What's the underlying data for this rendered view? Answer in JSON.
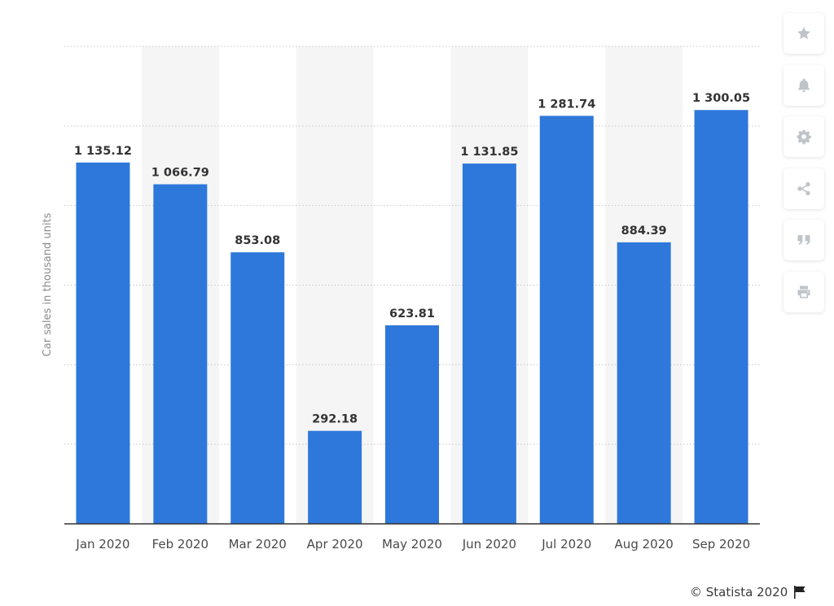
{
  "chart_data": {
    "type": "bar",
    "categories": [
      "Jan 2020",
      "Feb 2020",
      "Mar 2020",
      "Apr 2020",
      "May 2020",
      "Jun 2020",
      "Jul 2020",
      "Aug 2020",
      "Sep 2020"
    ],
    "values": [
      1135.12,
      1066.79,
      853.08,
      292.18,
      623.81,
      1131.85,
      1281.74,
      884.39,
      1300.05
    ],
    "value_labels": [
      "1 135.12",
      "1 066.79",
      "853.08",
      "292.18",
      "623.81",
      "1 131.85",
      "1 281.74",
      "884.39",
      "1 300.05"
    ],
    "ylabel": "Car sales in thousand units",
    "xlabel": "",
    "ylim": [
      0,
      1500
    ],
    "grid": true,
    "bar_color": "#2f78db",
    "band_color": "#f5f5f5"
  },
  "toolbar": {
    "icons": [
      "star-icon",
      "bell-icon",
      "gear-icon",
      "share-icon",
      "quote-icon",
      "print-icon"
    ]
  },
  "credit": {
    "text": "© Statista 2020"
  }
}
